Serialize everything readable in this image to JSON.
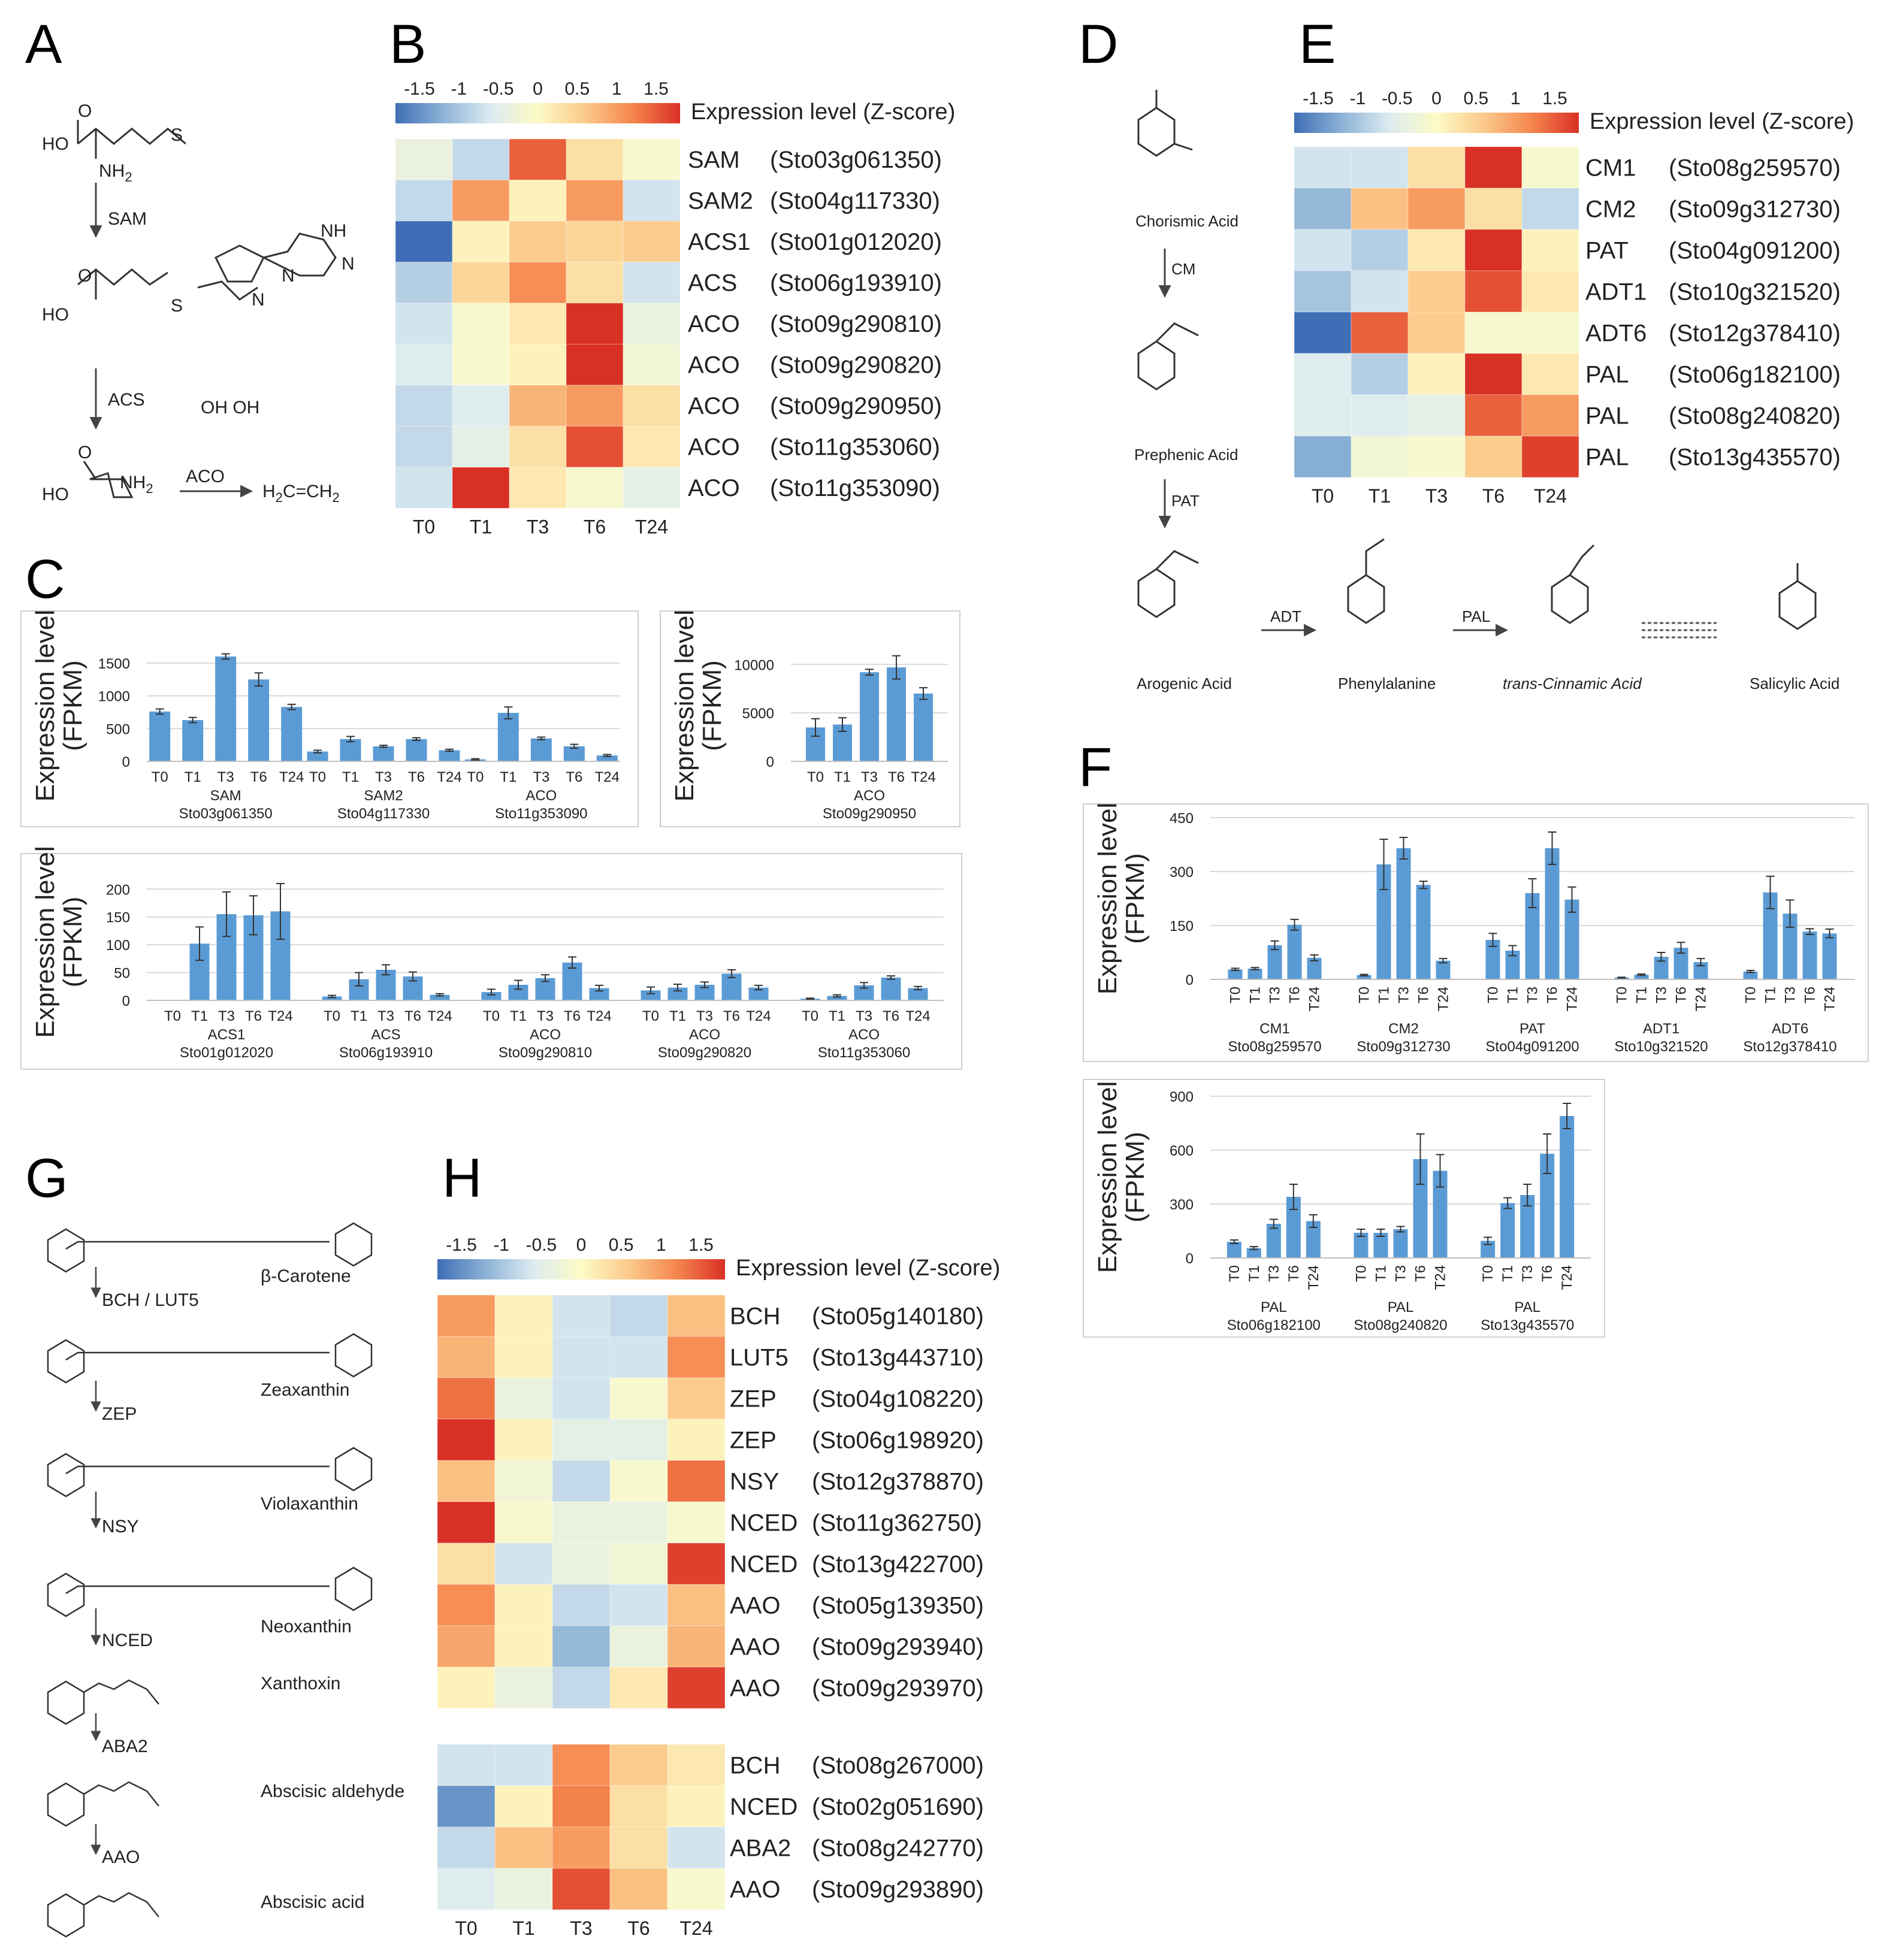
{
  "panel_letters": {
    "A": "A",
    "B": "B",
    "C": "C",
    "D": "D",
    "E": "E",
    "F": "F",
    "G": "G",
    "H": "H"
  },
  "timepoints": [
    "T0",
    "T1",
    "T3",
    "T6",
    "T24"
  ],
  "colorbar": {
    "ticks": [
      "-1.5",
      "-1",
      "-0.5",
      "0",
      "0.5",
      "1",
      "1.5"
    ],
    "label": "Expression level (Z-score)",
    "colors": [
      "#3f6eb6",
      "#8cb2d6",
      "#dcebf1",
      "#fdfbc6",
      "#fbc98a",
      "#f5864e",
      "#d93025"
    ]
  },
  "ethylene_pathway": {
    "compounds": {
      "sam_NH2": "NH",
      "sam_NH2_sub": "2",
      "acc_NH2": "NH",
      "acc_NH2_sub": "2",
      "ethylene": "H",
      "ethylene_2": "C=CH"
    },
    "enzymes": [
      "SAM",
      "ACS",
      "ACO"
    ]
  },
  "sa_pathway": {
    "compounds": [
      "Chorismic Acid",
      "Prephenic Acid",
      "Arogenic Acid",
      "Phenylalanine",
      "trans-Cinnamic Acid",
      "Salicylic Acid"
    ],
    "enzymes": [
      "CM",
      "PAT",
      "ADT",
      "PAL"
    ]
  },
  "aba_pathway": {
    "compounds": [
      "β-Carotene",
      "Zeaxanthin",
      "Violaxanthin",
      "Neoxanthin",
      "Xanthoxin",
      "Abscisic aldehyde",
      "Abscisic acid"
    ],
    "enzymes": [
      "BCH / LUT5",
      "ZEP",
      "NSY",
      "NCED",
      "ABA2",
      "AAO"
    ]
  },
  "chart_data": [
    {
      "panel": "B",
      "type": "heatmap",
      "title": "Expression level (Z-score)",
      "columns": [
        "T0",
        "T1",
        "T3",
        "T6",
        "T24"
      ],
      "rows": [
        {
          "gene": "SAM",
          "id": "(Sto03g061350)",
          "z": [
            -0.3,
            -0.7,
            1.3,
            0.3,
            -0.1
          ]
        },
        {
          "gene": "SAM2",
          "id": "(Sto04g117330)",
          "z": [
            -0.7,
            0.9,
            0.1,
            0.9,
            -0.6
          ]
        },
        {
          "gene": "ACS1",
          "id": "(Sto01g012020)",
          "z": [
            -1.6,
            0.1,
            0.5,
            0.4,
            0.5
          ]
        },
        {
          "gene": "ACS",
          "id": "(Sto06g193910)",
          "z": [
            -0.8,
            0.4,
            1.0,
            0.3,
            -0.6
          ]
        },
        {
          "gene": "ACO",
          "id": "(Sto09g290810)",
          "z": [
            -0.6,
            -0.1,
            0.2,
            1.6,
            -0.3
          ]
        },
        {
          "gene": "ACO",
          "id": "(Sto09g290820)",
          "z": [
            -0.5,
            -0.1,
            0.1,
            1.7,
            -0.2
          ]
        },
        {
          "gene": "ACO",
          "id": "(Sto09g290950)",
          "z": [
            -0.7,
            -0.5,
            0.7,
            0.9,
            0.3
          ]
        },
        {
          "gene": "ACO",
          "id": "(Sto11g353060)",
          "z": [
            -0.7,
            -0.4,
            0.3,
            1.4,
            0.2
          ]
        },
        {
          "gene": "ACO",
          "id": "(Sto11g353090)",
          "z": [
            -0.6,
            1.6,
            0.2,
            -0.1,
            -0.4
          ]
        }
      ]
    },
    {
      "panel": "E",
      "type": "heatmap",
      "title": "Expression level (Z-score)",
      "columns": [
        "T0",
        "T1",
        "T3",
        "T6",
        "T24"
      ],
      "rows": [
        {
          "gene": "CM1",
          "id": "(Sto08g259570)",
          "z": [
            -0.6,
            -0.6,
            0.3,
            1.7,
            -0.1
          ]
        },
        {
          "gene": "CM2",
          "id": "(Sto09g312730)",
          "z": [
            -1.0,
            0.6,
            0.9,
            0.3,
            -0.7
          ]
        },
        {
          "gene": "PAT",
          "id": "(Sto04g091200)",
          "z": [
            -0.6,
            -0.8,
            0.2,
            1.6,
            0.1
          ]
        },
        {
          "gene": "ADT1",
          "id": "(Sto10g321520)",
          "z": [
            -0.9,
            -0.6,
            0.5,
            1.4,
            0.2
          ]
        },
        {
          "gene": "ADT6",
          "id": "(Sto12g378410)",
          "z": [
            -1.6,
            1.3,
            0.5,
            -0.1,
            -0.1
          ]
        },
        {
          "gene": "PAL",
          "id": "(Sto06g182100)",
          "z": [
            -0.5,
            -0.8,
            0.1,
            1.7,
            0.2
          ]
        },
        {
          "gene": "PAL",
          "id": "(Sto08g240820)",
          "z": [
            -0.5,
            -0.5,
            -0.4,
            1.3,
            0.9
          ]
        },
        {
          "gene": "PAL",
          "id": "(Sto13g435570)",
          "z": [
            -1.1,
            -0.2,
            -0.1,
            0.5,
            1.5
          ]
        }
      ]
    },
    {
      "panel": "H",
      "type": "heatmap",
      "title": "Expression level (Z-score)",
      "columns": [
        "T0",
        "T1",
        "T3",
        "T6",
        "T24"
      ],
      "rows": [
        {
          "gene": "BCH",
          "id": "(Sto05g140180)",
          "z": [
            0.9,
            0.1,
            -0.6,
            -0.7,
            0.6
          ]
        },
        {
          "gene": "LUT5",
          "id": "(Sto13g443710)",
          "z": [
            0.7,
            0.1,
            -0.6,
            -0.6,
            1.0
          ]
        },
        {
          "gene": "ZEP",
          "id": "(Sto04g108220)",
          "z": [
            1.2,
            -0.3,
            -0.6,
            -0.1,
            0.5
          ]
        },
        {
          "gene": "ZEP",
          "id": "(Sto06g198920)",
          "z": [
            1.6,
            0.1,
            -0.4,
            -0.4,
            0.1
          ]
        },
        {
          "gene": "NSY",
          "id": "(Sto12g378870)",
          "z": [
            0.6,
            -0.2,
            -0.7,
            -0.1,
            1.2
          ]
        },
        {
          "gene": "NCED",
          "id": "(Sto11g362750)",
          "z": [
            1.7,
            -0.1,
            -0.3,
            -0.3,
            -0.1
          ]
        },
        {
          "gene": "NCED",
          "id": "(Sto13g422700)",
          "z": [
            0.3,
            -0.6,
            -0.3,
            -0.2,
            1.5
          ]
        },
        {
          "gene": "AAO",
          "id": "(Sto05g139350)",
          "z": [
            1.0,
            0.1,
            -0.7,
            -0.6,
            0.6
          ]
        },
        {
          "gene": "AAO",
          "id": "(Sto09g293940)",
          "z": [
            0.8,
            0.1,
            -1.0,
            -0.3,
            0.7
          ]
        },
        {
          "gene": "AAO",
          "id": "(Sto09g293970)",
          "z": [
            0.1,
            -0.3,
            -0.7,
            0.2,
            1.5
          ]
        },
        {
          "gene": "BCH",
          "id": "(Sto08g267000)",
          "z": [
            -0.6,
            -0.6,
            1.0,
            0.5,
            0.2
          ]
        },
        {
          "gene": "NCED",
          "id": "(Sto02g051690)",
          "z": [
            -1.3,
            0.1,
            1.1,
            0.3,
            0.1
          ]
        },
        {
          "gene": "ABA2",
          "id": "(Sto08g242770)",
          "z": [
            -0.7,
            0.6,
            0.9,
            0.3,
            -0.6
          ]
        },
        {
          "gene": "AAO",
          "id": "(Sto09g293890)",
          "z": [
            -0.5,
            -0.3,
            1.4,
            0.6,
            -0.1
          ]
        }
      ]
    },
    {
      "panel": "C1",
      "type": "bar",
      "ylabel": "Expression level (FPKM)",
      "ylim": [
        0,
        1700
      ],
      "yticks": [
        0,
        500,
        1000,
        1500
      ],
      "x": [
        "T0",
        "T1",
        "T3",
        "T6",
        "T24"
      ],
      "groups": [
        {
          "gene": "SAM",
          "id": "Sto03g061350",
          "values": [
            760,
            630,
            1600,
            1250,
            830
          ],
          "err": [
            40,
            40,
            40,
            100,
            40
          ]
        },
        {
          "gene": "SAM2",
          "id": "Sto04g117330",
          "values": [
            150,
            340,
            230,
            340,
            170
          ],
          "err": [
            20,
            40,
            15,
            20,
            15
          ]
        },
        {
          "gene": "ACO",
          "id": "Sto11g353090",
          "values": [
            30,
            740,
            350,
            230,
            90
          ],
          "err": [
            10,
            90,
            20,
            30,
            15
          ]
        }
      ]
    },
    {
      "panel": "C2",
      "type": "bar",
      "ylabel": "Expression level (FPKM)",
      "ylim": [
        0,
        11500
      ],
      "yticks": [
        0,
        5000,
        10000
      ],
      "x": [
        "T0",
        "T1",
        "T3",
        "T6",
        "T24"
      ],
      "groups": [
        {
          "gene": "ACO",
          "id": "Sto09g290950",
          "values": [
            3500,
            3800,
            9200,
            9700,
            7000
          ],
          "err": [
            900,
            700,
            300,
            1200,
            600
          ]
        }
      ]
    },
    {
      "panel": "C3",
      "type": "bar",
      "ylabel": "Expression level (FPKM)",
      "ylim": [
        0,
        210
      ],
      "yticks": [
        0,
        50,
        100,
        150,
        200
      ],
      "x": [
        "T0",
        "T1",
        "T3",
        "T6",
        "T24"
      ],
      "groups": [
        {
          "gene": "ACS1",
          "id": "Sto01g012020",
          "values": [
            1,
            102,
            155,
            153,
            160
          ],
          "err": [
            0,
            30,
            40,
            35,
            50
          ]
        },
        {
          "gene": "ACS",
          "id": "Sto06g193910",
          "values": [
            7,
            38,
            55,
            43,
            10
          ],
          "err": [
            2,
            12,
            9,
            8,
            2
          ]
        },
        {
          "gene": "ACO",
          "id": "Sto09g290810",
          "values": [
            15,
            28,
            40,
            68,
            22
          ],
          "err": [
            5,
            8,
            6,
            10,
            5
          ]
        },
        {
          "gene": "ACO",
          "id": "Sto09g290820",
          "values": [
            18,
            23,
            28,
            48,
            23
          ],
          "err": [
            6,
            6,
            5,
            7,
            4
          ]
        },
        {
          "gene": "ACO",
          "id": "Sto11g353060",
          "values": [
            3,
            8,
            27,
            41,
            22
          ],
          "err": [
            1,
            2,
            5,
            3,
            3
          ]
        }
      ]
    },
    {
      "panel": "F1",
      "type": "bar",
      "ylabel": "Expression level (FPKM)",
      "ylim": [
        0,
        450
      ],
      "yticks": [
        0,
        150,
        300,
        450
      ],
      "x": [
        "T0",
        "T1",
        "T3",
        "T6",
        "T24"
      ],
      "groups": [
        {
          "gene": "CM1",
          "id": "Sto08g259570",
          "values": [
            28,
            30,
            95,
            152,
            60
          ],
          "err": [
            3,
            3,
            12,
            15,
            8
          ]
        },
        {
          "gene": "CM2",
          "id": "Sto09g312730",
          "values": [
            12,
            320,
            365,
            263,
            52
          ],
          "err": [
            2,
            70,
            30,
            10,
            6
          ]
        },
        {
          "gene": "PAT",
          "id": "Sto04g091200",
          "values": [
            110,
            80,
            240,
            365,
            222
          ],
          "err": [
            18,
            14,
            40,
            45,
            35
          ]
        },
        {
          "gene": "ADT1",
          "id": "Sto10g321520",
          "values": [
            5,
            13,
            63,
            88,
            48
          ],
          "err": [
            1,
            2,
            12,
            15,
            10
          ]
        },
        {
          "gene": "ADT6",
          "id": "Sto12g378410",
          "values": [
            22,
            242,
            183,
            133,
            128
          ],
          "err": [
            3,
            45,
            38,
            8,
            12
          ]
        }
      ]
    },
    {
      "panel": "F2",
      "type": "bar",
      "ylabel": "Expression level (FPKM)",
      "ylim": [
        0,
        900
      ],
      "yticks": [
        0,
        300,
        600,
        900
      ],
      "x": [
        "T0",
        "T1",
        "T3",
        "T6",
        "T24"
      ],
      "groups": [
        {
          "gene": "PAL",
          "id": "Sto06g182100",
          "values": [
            90,
            55,
            190,
            340,
            205
          ],
          "err": [
            10,
            8,
            25,
            70,
            35
          ]
        },
        {
          "gene": "PAL",
          "id": "Sto08g240820",
          "values": [
            140,
            140,
            160,
            550,
            485
          ],
          "err": [
            20,
            20,
            15,
            140,
            90
          ]
        },
        {
          "gene": "PAL",
          "id": "Sto13g435570",
          "values": [
            95,
            305,
            350,
            580,
            790
          ],
          "err": [
            20,
            30,
            60,
            110,
            70
          ]
        }
      ]
    }
  ]
}
